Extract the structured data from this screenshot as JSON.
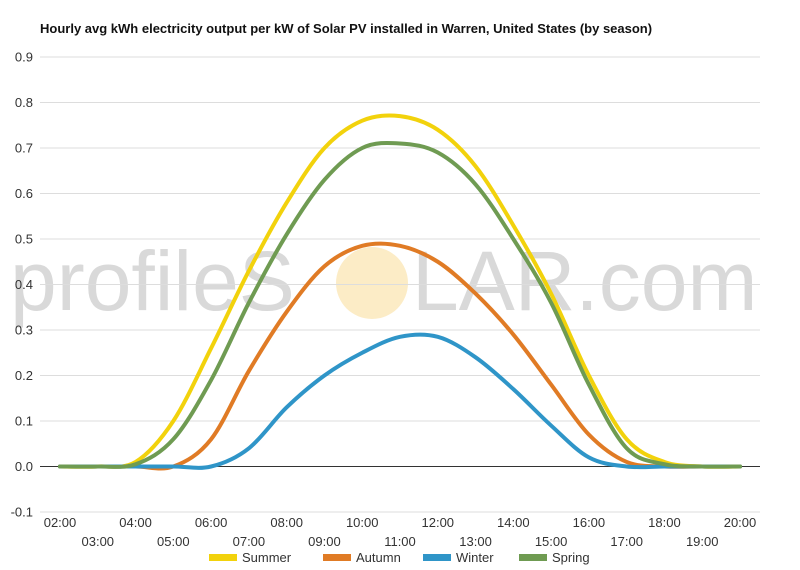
{
  "chart_data": {
    "type": "line",
    "title": "Hourly avg kWh electricity output per kW of Solar PV installed in Warren, United States (by season)",
    "xlabel": "",
    "ylabel": "",
    "ylim": [
      -0.1,
      0.9
    ],
    "yticks": [
      "-0.1",
      "0.0",
      "0.1",
      "0.2",
      "0.3",
      "0.4",
      "0.5",
      "0.6",
      "0.7",
      "0.8",
      "0.9"
    ],
    "x": [
      "02:00",
      "03:00",
      "04:00",
      "05:00",
      "06:00",
      "07:00",
      "08:00",
      "09:00",
      "10:00",
      "11:00",
      "12:00",
      "13:00",
      "14:00",
      "15:00",
      "16:00",
      "17:00",
      "18:00",
      "19:00",
      "20:00"
    ],
    "grid": true,
    "legend": "bottom",
    "series": [
      {
        "name": "Summer",
        "color": "#f2d20c",
        "values": [
          0.0,
          0.0,
          0.01,
          0.1,
          0.26,
          0.43,
          0.58,
          0.7,
          0.76,
          0.77,
          0.74,
          0.66,
          0.53,
          0.38,
          0.2,
          0.06,
          0.01,
          0.0,
          0.0
        ]
      },
      {
        "name": "Autumn",
        "color": "#e07b25",
        "values": [
          0.0,
          0.0,
          0.0,
          0.0,
          0.06,
          0.21,
          0.34,
          0.44,
          0.485,
          0.485,
          0.45,
          0.38,
          0.29,
          0.18,
          0.07,
          0.01,
          0.0,
          0.0,
          0.0
        ]
      },
      {
        "name": "Winter",
        "color": "#2f95c8",
        "values": [
          0.0,
          0.0,
          0.0,
          0.0,
          0.0,
          0.04,
          0.13,
          0.2,
          0.25,
          0.285,
          0.285,
          0.24,
          0.17,
          0.09,
          0.02,
          0.0,
          0.0,
          0.0,
          0.0
        ]
      },
      {
        "name": "Spring",
        "color": "#6f9b52",
        "values": [
          0.0,
          0.0,
          0.005,
          0.06,
          0.19,
          0.36,
          0.51,
          0.63,
          0.7,
          0.71,
          0.69,
          0.62,
          0.5,
          0.36,
          0.18,
          0.04,
          0.005,
          0.0,
          0.0
        ]
      }
    ]
  },
  "watermark": {
    "text_left": "profileS",
    "text_right": "LAR.com"
  }
}
